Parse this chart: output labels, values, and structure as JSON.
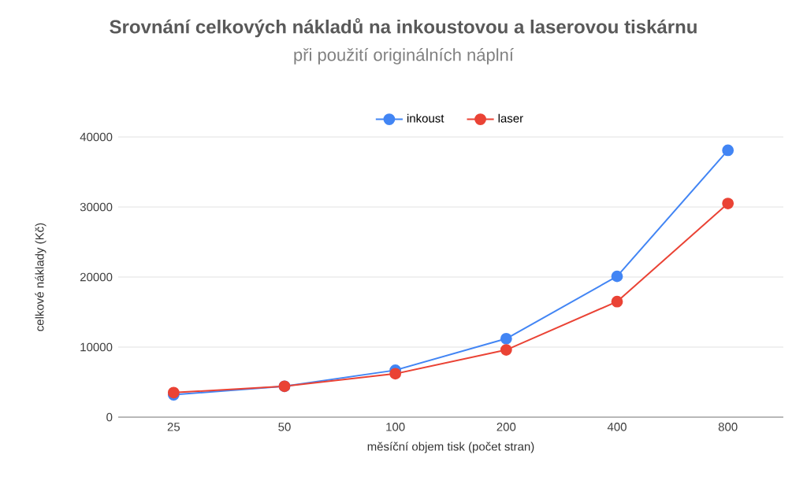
{
  "chart_data": {
    "type": "line",
    "title": "Srovnání celkových nákladů na inkoustovou a laserovou tiskárnu",
    "subtitle": "při použití originálních náplní",
    "xlabel": "měsíční objem tisk (počet stran)",
    "ylabel": "celkové náklady (Kč)",
    "categories": [
      "25",
      "50",
      "100",
      "200",
      "400",
      "800"
    ],
    "series": [
      {
        "name": "inkoust",
        "color": "#4285f4",
        "values": [
          3200,
          4400,
          6700,
          11200,
          20100,
          38100
        ]
      },
      {
        "name": "laser",
        "color": "#ea4335",
        "values": [
          3500,
          4400,
          6200,
          9600,
          16500,
          30500
        ]
      }
    ],
    "ylim": [
      0,
      40000
    ],
    "yticks": [
      0,
      10000,
      20000,
      30000,
      40000
    ],
    "grid": "y",
    "legend": "top",
    "marker": "circle",
    "line_style": "solid"
  }
}
